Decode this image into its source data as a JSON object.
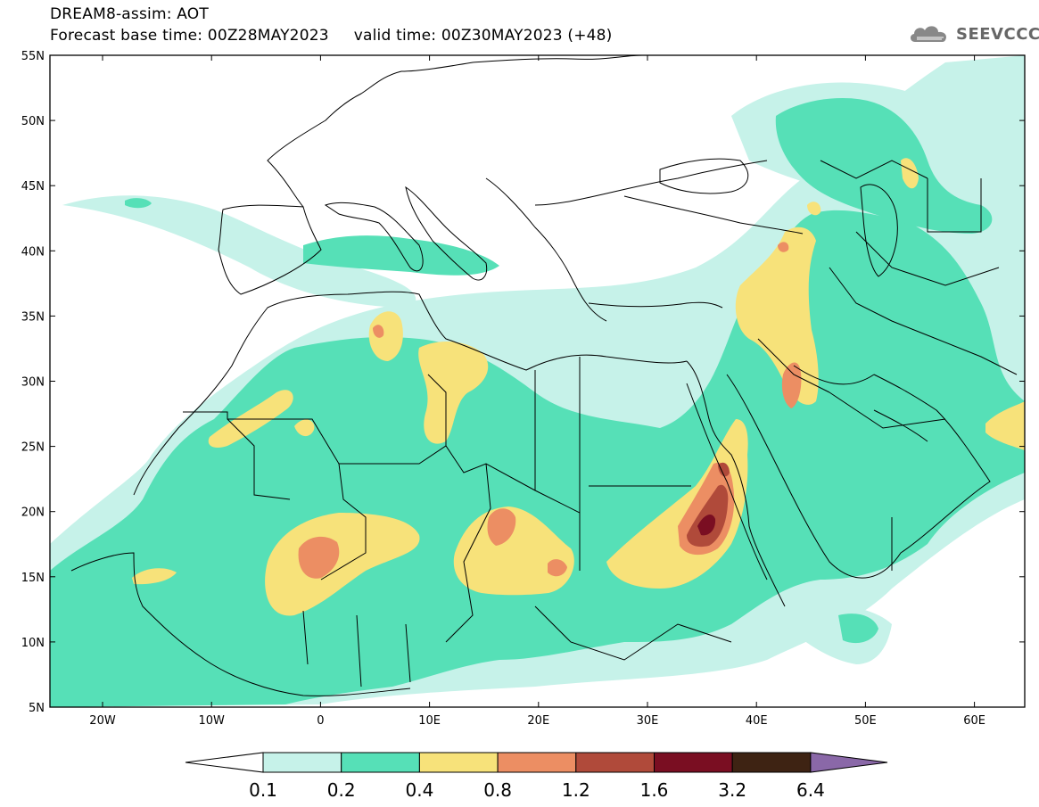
{
  "title": {
    "line1": "DREAM8-assim: AOT",
    "line2": "Forecast base time: 00Z28MAY2023     valid time: 00Z30MAY2023 (+48)"
  },
  "logo": {
    "text": "SEEVCCC",
    "icon": "cloud-icon"
  },
  "map": {
    "lat_labels": [
      "55N",
      "50N",
      "45N",
      "40N",
      "35N",
      "30N",
      "25N",
      "20N",
      "15N",
      "10N",
      "5N"
    ],
    "lon_labels": [
      "20W",
      "10W",
      "0",
      "10E",
      "20E",
      "30E",
      "40E",
      "50E",
      "60E"
    ]
  },
  "colorbar": {
    "ticks": [
      "0.1",
      "0.2",
      "0.4",
      "0.8",
      "1.2",
      "1.6",
      "3.2",
      "6.4"
    ],
    "colors": [
      "#ffffff",
      "#c6f2e9",
      "#56e0b7",
      "#f7e27a",
      "#ec8e63",
      "#b04a3a",
      "#7a0e22",
      "#3e2313",
      "#8a68a8"
    ]
  }
}
